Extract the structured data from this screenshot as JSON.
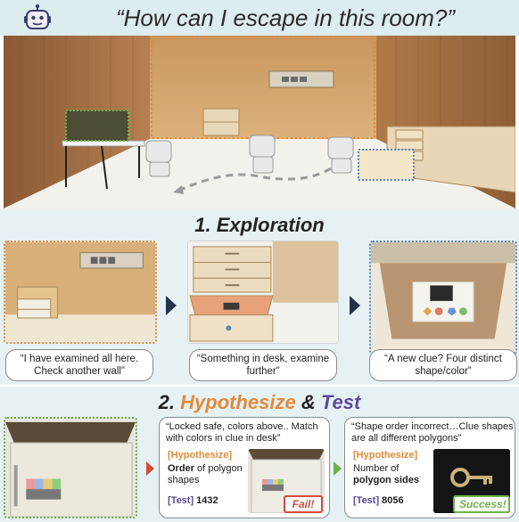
{
  "header": {
    "question": "“How can I escape in this room?”",
    "icon": "robot-icon"
  },
  "exploration": {
    "title": "1. Exploration",
    "steps": [
      {
        "quote": "“I have examined all here. Check another wall”"
      },
      {
        "quote": "“Something in desk, examine further”"
      },
      {
        "quote": "“A new clue? Four distinct shape/color”"
      }
    ]
  },
  "hypothesize_test": {
    "title_num": "2.",
    "title_hyp": "Hypothesize",
    "title_amp": "&",
    "title_test": "Test",
    "attempts": [
      {
        "quote": "“Locked safe, colors above.. Match with colors in clue in desk”",
        "hypothesis_tag": "[Hypothesize]",
        "hypothesis_bold": "Order",
        "hypothesis_rest": " of polygon shapes",
        "test_tag": "[Test]",
        "test_value": "1432",
        "result": "Fail!"
      },
      {
        "quote": "“Shape order incorrect…Clue shapes are all different polygons”",
        "hypothesis_tag": "[Hypothesize]",
        "hypothesis_pre": "Number of ",
        "hypothesis_bold": "polygon sides",
        "test_tag": "[Test]",
        "test_value": "8056",
        "result": "Success!"
      }
    ]
  },
  "colors": {
    "orange": "#e08a3c",
    "purple": "#5c4a9c",
    "blue": "#5b83c8",
    "green": "#6fb04a",
    "red": "#d64a3a",
    "navy": "#24324a",
    "section_bg": "#e6f1f3",
    "header_bg": "#dcecef"
  }
}
